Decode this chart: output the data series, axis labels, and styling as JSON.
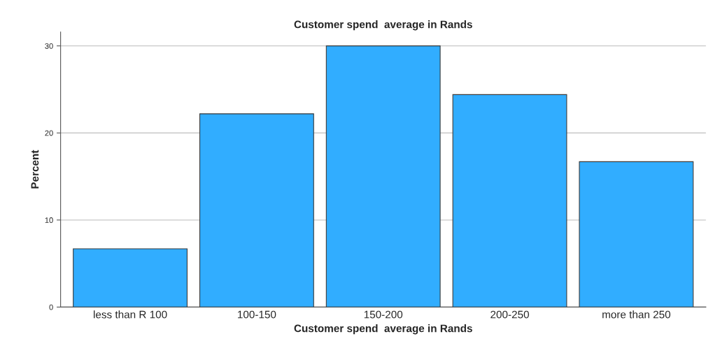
{
  "chart_data": {
    "type": "bar",
    "title": "Customer spend  average in Rands",
    "xlabel": "Customer spend  average in Rands",
    "ylabel": "Percent",
    "categories": [
      "less than R 100",
      "100-150",
      "150-200",
      "200-250",
      "more than 250"
    ],
    "values": [
      6.7,
      22.2,
      30.0,
      24.4,
      16.7
    ],
    "color": "#31adff",
    "ylim": [
      0,
      31.6
    ],
    "yticks": [
      0,
      10,
      20,
      30
    ],
    "grid": "y"
  }
}
